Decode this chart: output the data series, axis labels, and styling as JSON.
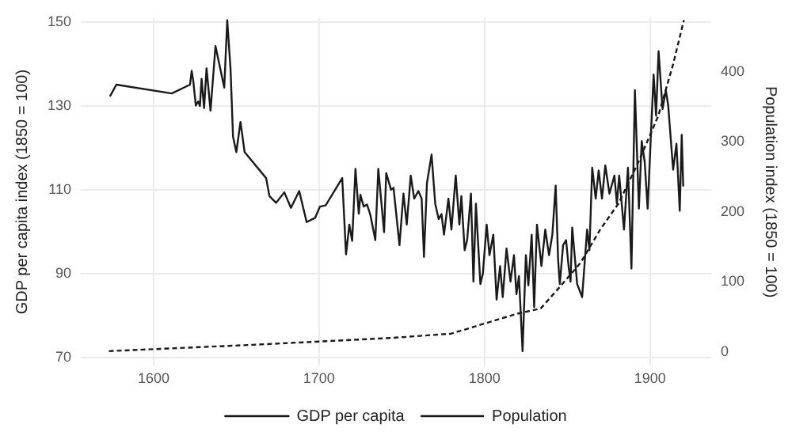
{
  "chart_data": {
    "type": "line",
    "xlabel": null,
    "ylabel": "GDP per capita index (1850 = 100)",
    "y2label": "Population index (1850 = 100)",
    "xlim": [
      1556,
      1937
    ],
    "xticks": [
      1600,
      1700,
      1800,
      1900
    ],
    "ylim": [
      68,
      151
    ],
    "yticks": [
      70,
      90,
      110,
      130,
      150
    ],
    "y2lim": [
      -20,
      477
    ],
    "y2ticks": [
      0,
      100,
      200,
      300,
      400
    ],
    "grid": true,
    "legend": "bottom",
    "marker": "none",
    "series": [
      {
        "name": "GDP per capita",
        "color": "#1a1a1a",
        "line_style": "solid",
        "x": [
          1573.6,
          1577.5,
          1611,
          1622,
          1623,
          1624,
          1625.5,
          1627,
          1628,
          1629,
          1630.5,
          1632,
          1634.4,
          1637.4,
          1642.7,
          1644.5,
          1646.5,
          1648,
          1650,
          1652.5,
          1655,
          1668,
          1670,
          1674,
          1679,
          1683,
          1688,
          1692.5,
          1697.6,
          1700.5,
          1704,
          1708,
          1714,
          1716.3,
          1718.3,
          1720,
          1722,
          1724,
          1725,
          1727,
          1729,
          1731,
          1734,
          1735.8,
          1739.3,
          1740.6,
          1743.5,
          1745,
          1748.6,
          1751,
          1753,
          1755.4,
          1757.5,
          1760,
          1762,
          1763.4,
          1765.2,
          1768,
          1770.2,
          1772.3,
          1774,
          1775.5,
          1778.2,
          1780,
          1782.6,
          1784.8,
          1786,
          1788,
          1789.5,
          1791.8,
          1793.3,
          1794.8,
          1797.5,
          1799,
          1801.3,
          1803,
          1805.3,
          1807.3,
          1809.4,
          1811,
          1813.3,
          1815.7,
          1817.8,
          1819.3,
          1820.8,
          1823,
          1825,
          1826.5,
          1828.5,
          1830,
          1831.7,
          1834.4,
          1836.7,
          1839,
          1841,
          1843,
          1844.5,
          1845.5,
          1847.5,
          1849.3,
          1850.8,
          1852,
          1853,
          1856,
          1859,
          1862,
          1863.4,
          1865.1,
          1867.2,
          1869,
          1871,
          1873,
          1875.5,
          1878.5,
          1880,
          1881.4,
          1884.3,
          1886.7,
          1888.8,
          1890.9,
          1893.3,
          1895,
          1896.8,
          1898.6,
          1902.2,
          1903.7,
          1905.2,
          1907.6,
          1909.6,
          1911,
          1914,
          1916,
          1918,
          1919.2,
          1920.1
        ],
        "values": [
          132.3,
          135.1,
          133,
          135.1,
          138.4,
          135.9,
          130.1,
          131.1,
          130,
          136.5,
          129.5,
          139,
          128.9,
          144.3,
          134.4,
          150.5,
          138.8,
          122.7,
          119,
          126.2,
          119,
          112.8,
          108.5,
          106.9,
          109.4,
          105.7,
          109.7,
          102.3,
          103.3,
          106,
          106.3,
          108.9,
          112.8,
          94.6,
          101.7,
          97.8,
          115,
          104.3,
          108.8,
          106,
          106.5,
          104,
          98,
          115,
          99.9,
          114,
          110,
          110.5,
          96.8,
          109.1,
          101.7,
          113.4,
          107.9,
          109.7,
          107.9,
          94,
          111.6,
          118.4,
          106.7,
          103,
          104.2,
          99.3,
          107.9,
          100.5,
          113.4,
          101.7,
          108.5,
          95.6,
          98,
          109.1,
          88.1,
          106.7,
          87.5,
          90,
          101.7,
          94.4,
          99.3,
          83.8,
          91.8,
          84.4,
          96,
          88.1,
          94.4,
          85.1,
          89.4,
          71.5,
          94.4,
          87.2,
          99.3,
          82,
          101.7,
          91.8,
          100.5,
          94.4,
          99.3,
          111,
          93.2,
          87.5,
          96.8,
          98,
          91.8,
          88.1,
          101,
          87.5,
          84.4,
          100.5,
          95.6,
          115.3,
          107.9,
          114.6,
          107.9,
          115.8,
          109.1,
          113.4,
          106.7,
          113.4,
          100.5,
          115.3,
          91.2,
          133.8,
          105.5,
          121.6,
          116.7,
          105.5,
          137.5,
          127.7,
          143.1,
          129.3,
          133.8,
          130.2,
          114.8,
          121,
          105,
          123.1,
          110.8
        ]
      },
      {
        "name": "Population",
        "color": "#1a1a1a",
        "line_style": "dashed",
        "axis": "y2",
        "x": [
          1573,
          1660,
          1745,
          1780,
          1819,
          1834,
          1846,
          1858,
          1870,
          1881,
          1893,
          1905,
          1914,
          1920.5
        ],
        "values": [
          1,
          10,
          20,
          26,
          54,
          62,
          94,
          127,
          175,
          212,
          271,
          337,
          411,
          474
        ]
      }
    ]
  }
}
